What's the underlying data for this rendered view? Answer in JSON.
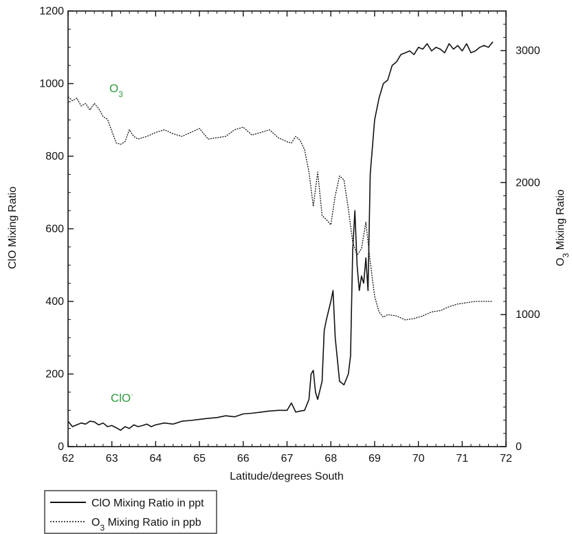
{
  "chart_data": {
    "type": "line",
    "xlabel": "Latitude/degrees South",
    "ylabel_left": "ClO Mixing Ratio",
    "ylabel_right_main": "O",
    "ylabel_right_sub": "3",
    "ylabel_right_tail": " Mixing Ratio",
    "xlim": [
      62,
      72
    ],
    "ylim_left": [
      0,
      1200
    ],
    "ylim_right": [
      0,
      3300
    ],
    "x_ticks": [
      "62",
      "63",
      "64",
      "65",
      "66",
      "67",
      "68",
      "69",
      "70",
      "71",
      "72"
    ],
    "y_left_ticks": [
      "0",
      "200",
      "400",
      "600",
      "800",
      "1000",
      "1200"
    ],
    "y_right_ticks": [
      "0",
      "1000",
      "2000",
      "3000"
    ],
    "annotations": {
      "o3_main": "O",
      "o3_sub": "3",
      "clo_main": "ClO",
      "clo_sup": "·",
      "color": "#2e9a3e"
    },
    "legend": {
      "position": "below-left",
      "clo_label": "ClO Mixing Ratio in ppt",
      "o3_label_main": "O",
      "o3_label_sub": "3",
      "o3_label_tail": " Mixing Ratio in ppb"
    },
    "series": [
      {
        "name": "ClO Mixing Ratio in ppt",
        "axis": "left",
        "style": "solid",
        "x": [
          62.0,
          62.1,
          62.2,
          62.3,
          62.4,
          62.5,
          62.6,
          62.7,
          62.8,
          62.9,
          63.0,
          63.1,
          63.2,
          63.3,
          63.4,
          63.5,
          63.6,
          63.7,
          63.8,
          63.9,
          64.0,
          64.2,
          64.4,
          64.6,
          64.8,
          65.0,
          65.2,
          65.4,
          65.6,
          65.8,
          66.0,
          66.2,
          66.4,
          66.6,
          66.8,
          67.0,
          67.1,
          67.2,
          67.3,
          67.4,
          67.5,
          67.55,
          67.6,
          67.65,
          67.7,
          67.8,
          67.85,
          67.9,
          68.0,
          68.05,
          68.1,
          68.2,
          68.3,
          68.4,
          68.45,
          68.5,
          68.55,
          68.6,
          68.65,
          68.7,
          68.75,
          68.8,
          68.85,
          68.9,
          69.0,
          69.1,
          69.2,
          69.3,
          69.4,
          69.5,
          69.6,
          69.7,
          69.8,
          69.9,
          70.0,
          70.1,
          70.2,
          70.3,
          70.4,
          70.5,
          70.6,
          70.7,
          70.8,
          70.9,
          71.0,
          71.1,
          71.2,
          71.3,
          71.4,
          71.5,
          71.6,
          71.7
        ],
        "y": [
          70,
          55,
          60,
          65,
          62,
          70,
          68,
          60,
          65,
          55,
          58,
          52,
          45,
          55,
          50,
          60,
          55,
          58,
          62,
          55,
          60,
          65,
          62,
          70,
          72,
          75,
          78,
          80,
          85,
          82,
          90,
          92,
          95,
          98,
          100,
          100,
          120,
          95,
          98,
          100,
          130,
          200,
          210,
          150,
          130,
          180,
          320,
          350,
          400,
          430,
          300,
          180,
          170,
          200,
          250,
          540,
          650,
          500,
          430,
          470,
          450,
          520,
          430,
          750,
          900,
          960,
          1000,
          1010,
          1050,
          1060,
          1080,
          1085,
          1090,
          1080,
          1100,
          1095,
          1110,
          1090,
          1100,
          1095,
          1085,
          1110,
          1095,
          1105,
          1090,
          1110,
          1085,
          1090,
          1100,
          1105,
          1100,
          1115
        ]
      },
      {
        "name": "O3 Mixing Ratio in ppb",
        "axis": "right",
        "style": "dashed",
        "x": [
          62.0,
          62.1,
          62.2,
          62.3,
          62.4,
          62.5,
          62.6,
          62.7,
          62.8,
          62.9,
          63.0,
          63.1,
          63.2,
          63.3,
          63.4,
          63.5,
          63.6,
          63.7,
          63.8,
          64.0,
          64.2,
          64.4,
          64.6,
          64.8,
          65.0,
          65.2,
          65.4,
          65.6,
          65.8,
          66.0,
          66.2,
          66.4,
          66.6,
          66.8,
          67.0,
          67.1,
          67.2,
          67.3,
          67.4,
          67.5,
          67.6,
          67.7,
          67.8,
          67.9,
          68.0,
          68.1,
          68.2,
          68.3,
          68.4,
          68.5,
          68.6,
          68.7,
          68.8,
          68.9,
          69.0,
          69.1,
          69.2,
          69.3,
          69.5,
          69.7,
          69.9,
          70.1,
          70.3,
          70.5,
          70.7,
          70.9,
          71.1,
          71.3,
          71.5,
          71.7
        ],
        "y": [
          2650,
          2620,
          2640,
          2580,
          2600,
          2550,
          2600,
          2560,
          2500,
          2480,
          2390,
          2300,
          2290,
          2310,
          2400,
          2350,
          2330,
          2340,
          2350,
          2380,
          2400,
          2370,
          2350,
          2380,
          2410,
          2330,
          2340,
          2350,
          2400,
          2420,
          2360,
          2380,
          2400,
          2340,
          2310,
          2300,
          2350,
          2320,
          2250,
          2080,
          1820,
          2080,
          1750,
          1720,
          1680,
          1900,
          2050,
          2020,
          1800,
          1550,
          1450,
          1500,
          1700,
          1400,
          1140,
          1020,
          980,
          1000,
          990,
          960,
          970,
          990,
          1020,
          1030,
          1060,
          1080,
          1090,
          1100,
          1100,
          1100
        ]
      }
    ]
  }
}
